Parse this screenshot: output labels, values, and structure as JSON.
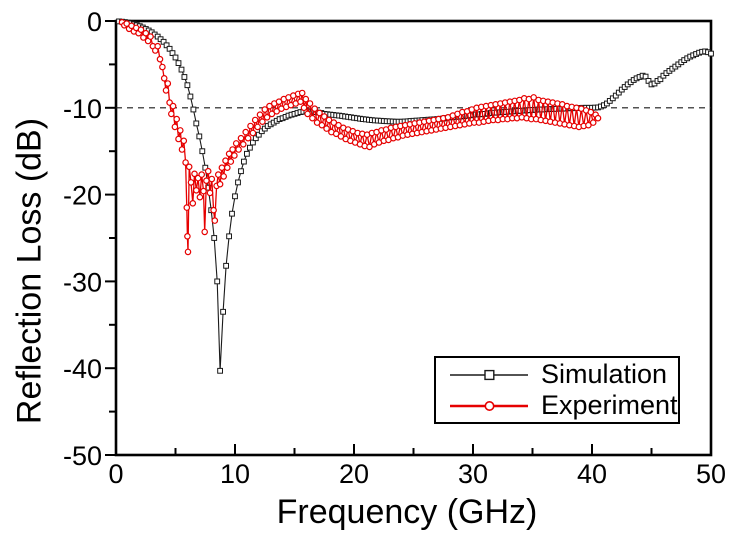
{
  "chart_data": {
    "type": "line",
    "title": "",
    "xlabel": "Frequency (GHz)",
    "ylabel": "Reflection Loss (dB)",
    "xlim": [
      0,
      50
    ],
    "ylim": [
      -50,
      0
    ],
    "x_major_ticks": [
      0,
      10,
      20,
      30,
      40,
      50
    ],
    "x_minor_ticks": [
      5,
      15,
      25,
      35,
      45
    ],
    "y_major_ticks": [
      0,
      -10,
      -20,
      -30,
      -40,
      -50
    ],
    "y_minor_ticks": [
      -5,
      -15,
      -25,
      -35,
      -45
    ],
    "grid": "off",
    "reference_line": {
      "y": -10,
      "style": "dashed",
      "color": "#1a1a1a"
    },
    "legend": {
      "position": "inside-bottom-right",
      "border": true
    },
    "series": [
      {
        "name": "Simulation",
        "color": "#1a1a1a",
        "marker": "square",
        "marker_fill": "#ffffff",
        "x0": 0.25,
        "dx": 0.25,
        "values": [
          -0.05,
          -0.08,
          -0.13,
          -0.2,
          -0.28,
          -0.38,
          -0.48,
          -0.6,
          -0.75,
          -0.92,
          -1.1,
          -1.3,
          -1.55,
          -1.8,
          -2.1,
          -2.4,
          -2.8,
          -3.2,
          -3.7,
          -4.2,
          -4.85,
          -5.6,
          -6.45,
          -7.4,
          -8.7,
          -10.2,
          -11.8,
          -13.3,
          -15.0,
          -16.9,
          -19.2,
          -21.8,
          -25.0,
          -30.0,
          -40.3,
          -33.5,
          -28.2,
          -24.8,
          -22.2,
          -20.2,
          -18.6,
          -17.3,
          -16.2,
          -15.3,
          -14.6,
          -14.0,
          -13.5,
          -13.1,
          -12.7,
          -12.4,
          -12.1,
          -11.9,
          -11.7,
          -11.5,
          -11.3,
          -11.2,
          -11.05,
          -10.9,
          -10.8,
          -10.7,
          -10.6,
          -10.5,
          -10.45,
          -10.4,
          -10.4,
          -10.45,
          -10.5,
          -10.55,
          -10.6,
          -10.7,
          -10.74,
          -10.78,
          -10.82,
          -10.86,
          -10.9,
          -10.95,
          -11.0,
          -11.05,
          -11.1,
          -11.15,
          -11.2,
          -11.25,
          -11.3,
          -11.34,
          -11.38,
          -11.42,
          -11.45,
          -11.48,
          -11.5,
          -11.52,
          -11.54,
          -11.56,
          -11.58,
          -11.6,
          -11.6,
          -11.6,
          -11.58,
          -11.55,
          -11.52,
          -11.5,
          -11.47,
          -11.45,
          -11.42,
          -11.4,
          -11.37,
          -11.35,
          -11.32,
          -11.3,
          -11.27,
          -11.23,
          -11.17,
          -11.12,
          -11.08,
          -11.05,
          -11.02,
          -11.0,
          -10.96,
          -10.92,
          -10.86,
          -10.8,
          -10.77,
          -10.75,
          -10.72,
          -10.7,
          -10.65,
          -10.6,
          -10.57,
          -10.55,
          -10.52,
          -10.5,
          -10.47,
          -10.45,
          -10.42,
          -10.4,
          -10.37,
          -10.35,
          -10.32,
          -10.3,
          -10.27,
          -10.25,
          -10.23,
          -10.2,
          -10.2,
          -10.18,
          -10.16,
          -10.15,
          -10.13,
          -10.12,
          -10.1,
          -10.1,
          -10.08,
          -10.06,
          -10.05,
          -10.05,
          -10.03,
          -10.02,
          -10.0,
          -10.0,
          -10.0,
          -10.0,
          -9.98,
          -9.95,
          -9.85,
          -9.7,
          -9.5,
          -9.2,
          -8.9,
          -8.6,
          -8.25,
          -7.9,
          -7.6,
          -7.3,
          -7.05,
          -6.8,
          -6.6,
          -6.45,
          -6.3,
          -6.4,
          -6.9,
          -7.3,
          -7.2,
          -6.9,
          -6.7,
          -6.3,
          -6.0,
          -5.75,
          -5.5,
          -5.25,
          -5.0,
          -4.75,
          -4.5,
          -4.3,
          -4.1,
          -3.95,
          -3.8,
          -3.65,
          -3.55,
          -3.5,
          -3.6,
          -3.75
        ]
      },
      {
        "name": "Experiment",
        "color": "#e60000",
        "marker": "circle",
        "marker_fill": "#ffffff",
        "points": [
          [
            0.5,
            -0.15
          ],
          [
            0.7,
            -0.5
          ],
          [
            0.9,
            -0.3
          ],
          [
            1.1,
            -0.9
          ],
          [
            1.3,
            -0.55
          ],
          [
            1.5,
            -1.2
          ],
          [
            1.7,
            -0.8
          ],
          [
            1.9,
            -1.4
          ],
          [
            2.1,
            -1.0
          ],
          [
            2.3,
            -1.9
          ],
          [
            2.5,
            -1.4
          ],
          [
            2.7,
            -2.3
          ],
          [
            2.9,
            -1.8
          ],
          [
            3.1,
            -2.9
          ],
          [
            3.3,
            -3.4
          ],
          [
            3.5,
            -2.9
          ],
          [
            3.7,
            -4.4
          ],
          [
            3.9,
            -5.3
          ],
          [
            4.05,
            -6.6
          ],
          [
            4.2,
            -8.0
          ],
          [
            4.35,
            -7.2
          ],
          [
            4.5,
            -9.4
          ],
          [
            4.65,
            -10.7
          ],
          [
            4.8,
            -9.8
          ],
          [
            4.95,
            -12.2
          ],
          [
            5.1,
            -11.3
          ],
          [
            5.25,
            -13.6
          ],
          [
            5.4,
            -12.6
          ],
          [
            5.55,
            -14.8
          ],
          [
            5.7,
            -13.8
          ],
          [
            5.85,
            -16.3
          ],
          [
            5.95,
            -21.5
          ],
          [
            6.0,
            -24.8
          ],
          [
            6.05,
            -26.6
          ],
          [
            6.15,
            -16.8
          ],
          [
            6.3,
            -18.6
          ],
          [
            6.45,
            -21.0
          ],
          [
            6.6,
            -17.6
          ],
          [
            6.75,
            -19.5
          ],
          [
            6.9,
            -18.1
          ],
          [
            7.05,
            -20.3
          ],
          [
            7.2,
            -17.7
          ],
          [
            7.35,
            -19.6
          ],
          [
            7.45,
            -24.3
          ],
          [
            7.6,
            -18.4
          ],
          [
            7.75,
            -17.3
          ],
          [
            7.9,
            -19.8
          ],
          [
            8.05,
            -18.2
          ],
          [
            8.2,
            -21.8
          ],
          [
            8.3,
            -23.0
          ],
          [
            8.45,
            -19.0
          ],
          [
            8.6,
            -17.7
          ],
          [
            8.75,
            -18.8
          ],
          [
            8.9,
            -16.9
          ],
          [
            9.05,
            -17.9
          ],
          [
            9.2,
            -16.1
          ],
          [
            9.35,
            -16.9
          ],
          [
            9.5,
            -15.3
          ],
          [
            9.65,
            -16.2
          ],
          [
            9.8,
            -14.8
          ],
          [
            9.95,
            -15.5
          ],
          [
            10.1,
            -14.1
          ],
          [
            10.3,
            -14.8
          ],
          [
            10.5,
            -13.5
          ],
          [
            10.7,
            -14.2
          ],
          [
            10.9,
            -12.8
          ],
          [
            11.1,
            -13.5
          ],
          [
            11.3,
            -12.1
          ],
          [
            11.5,
            -12.9
          ],
          [
            11.7,
            -11.4
          ],
          [
            11.9,
            -12.2
          ],
          [
            12.1,
            -10.8
          ],
          [
            12.3,
            -11.6
          ],
          [
            12.5,
            -10.2
          ],
          [
            12.7,
            -11.1
          ],
          [
            12.9,
            -9.8
          ],
          [
            13.1,
            -10.7
          ],
          [
            13.3,
            -9.5
          ],
          [
            13.5,
            -10.4
          ],
          [
            13.7,
            -9.3
          ],
          [
            13.9,
            -10.1
          ],
          [
            14.1,
            -9.0
          ],
          [
            14.3,
            -9.9
          ],
          [
            14.5,
            -8.8
          ],
          [
            14.7,
            -9.7
          ],
          [
            14.9,
            -8.6
          ],
          [
            15.1,
            -9.5
          ],
          [
            15.3,
            -8.4
          ],
          [
            15.5,
            -9.3
          ],
          [
            15.65,
            -8.3
          ],
          [
            15.8,
            -10.0
          ],
          [
            15.95,
            -9.0
          ],
          [
            16.1,
            -10.7
          ],
          [
            16.3,
            -9.5
          ],
          [
            16.5,
            -11.2
          ],
          [
            16.7,
            -10.1
          ],
          [
            16.9,
            -11.7
          ],
          [
            17.1,
            -10.6
          ],
          [
            17.3,
            -12.0
          ],
          [
            17.5,
            -11.0
          ],
          [
            17.7,
            -12.4
          ],
          [
            17.9,
            -11.4
          ],
          [
            18.1,
            -12.8
          ],
          [
            18.3,
            -11.7
          ],
          [
            18.5,
            -13.0
          ],
          [
            18.7,
            -12.0
          ],
          [
            18.9,
            -13.3
          ],
          [
            19.1,
            -12.3
          ],
          [
            19.3,
            -13.6
          ],
          [
            19.5,
            -12.5
          ],
          [
            19.7,
            -13.8
          ],
          [
            19.9,
            -12.7
          ],
          [
            20.1,
            -14.0
          ],
          [
            20.3,
            -12.9
          ],
          [
            20.5,
            -14.2
          ],
          [
            20.7,
            -13.0
          ],
          [
            20.9,
            -14.4
          ],
          [
            21.1,
            -13.1
          ],
          [
            21.3,
            -14.5
          ],
          [
            21.5,
            -12.9
          ],
          [
            21.7,
            -14.2
          ],
          [
            21.9,
            -12.8
          ],
          [
            22.1,
            -14.0
          ],
          [
            22.3,
            -12.6
          ],
          [
            22.5,
            -13.8
          ],
          [
            22.7,
            -12.5
          ],
          [
            22.9,
            -13.7
          ],
          [
            23.1,
            -12.3
          ],
          [
            23.3,
            -13.5
          ],
          [
            23.5,
            -12.2
          ],
          [
            23.7,
            -13.4
          ],
          [
            23.9,
            -12.1
          ],
          [
            24.1,
            -13.2
          ],
          [
            24.3,
            -12.0
          ],
          [
            24.5,
            -13.1
          ],
          [
            24.7,
            -11.9
          ],
          [
            24.9,
            -13.0
          ],
          [
            25.1,
            -11.8
          ],
          [
            25.3,
            -12.9
          ],
          [
            25.5,
            -11.7
          ],
          [
            25.7,
            -12.8
          ],
          [
            25.9,
            -11.6
          ],
          [
            26.1,
            -12.7
          ],
          [
            26.3,
            -11.5
          ],
          [
            26.5,
            -12.6
          ],
          [
            26.7,
            -11.4
          ],
          [
            26.9,
            -12.5
          ],
          [
            27.1,
            -11.3
          ],
          [
            27.3,
            -12.4
          ],
          [
            27.5,
            -11.2
          ],
          [
            27.7,
            -12.3
          ],
          [
            27.9,
            -11.1
          ],
          [
            28.1,
            -12.2
          ],
          [
            28.3,
            -10.9
          ],
          [
            28.5,
            -12.1
          ],
          [
            28.7,
            -10.7
          ],
          [
            28.9,
            -12.0
          ],
          [
            29.1,
            -10.5
          ],
          [
            29.3,
            -11.9
          ],
          [
            29.5,
            -10.4
          ],
          [
            29.7,
            -11.8
          ],
          [
            29.9,
            -10.2
          ],
          [
            30.1,
            -11.7
          ],
          [
            30.3,
            -10.0
          ],
          [
            30.5,
            -11.7
          ],
          [
            30.7,
            -9.9
          ],
          [
            30.9,
            -11.6
          ],
          [
            31.1,
            -9.8
          ],
          [
            31.3,
            -11.5
          ],
          [
            31.5,
            -9.7
          ],
          [
            31.7,
            -11.4
          ],
          [
            31.9,
            -9.6
          ],
          [
            32.1,
            -11.4
          ],
          [
            32.3,
            -9.5
          ],
          [
            32.5,
            -11.3
          ],
          [
            32.7,
            -9.4
          ],
          [
            32.9,
            -11.3
          ],
          [
            33.1,
            -9.3
          ],
          [
            33.3,
            -11.2
          ],
          [
            33.5,
            -9.2
          ],
          [
            33.7,
            -11.2
          ],
          [
            33.9,
            -9.1
          ],
          [
            34.1,
            -11.1
          ],
          [
            34.3,
            -8.9
          ],
          [
            34.5,
            -11.2
          ],
          [
            34.7,
            -9.0
          ],
          [
            34.9,
            -11.3
          ],
          [
            35.1,
            -8.8
          ],
          [
            35.3,
            -11.3
          ],
          [
            35.5,
            -9.1
          ],
          [
            35.7,
            -11.4
          ],
          [
            35.9,
            -9.2
          ],
          [
            36.1,
            -11.5
          ],
          [
            36.3,
            -9.3
          ],
          [
            36.5,
            -11.6
          ],
          [
            36.7,
            -9.4
          ],
          [
            36.9,
            -11.7
          ],
          [
            37.1,
            -9.5
          ],
          [
            37.3,
            -11.8
          ],
          [
            37.5,
            -9.6
          ],
          [
            37.7,
            -11.9
          ],
          [
            37.9,
            -9.8
          ],
          [
            38.1,
            -12.0
          ],
          [
            38.3,
            -9.9
          ],
          [
            38.5,
            -12.1
          ],
          [
            38.7,
            -10.0
          ],
          [
            38.9,
            -12.2
          ],
          [
            39.1,
            -10.1
          ],
          [
            39.3,
            -12.1
          ],
          [
            39.5,
            -10.3
          ],
          [
            39.7,
            -12.0
          ],
          [
            39.9,
            -10.5
          ],
          [
            40.1,
            -11.7
          ],
          [
            40.3,
            -10.8
          ],
          [
            40.5,
            -11.2
          ]
        ]
      }
    ]
  }
}
